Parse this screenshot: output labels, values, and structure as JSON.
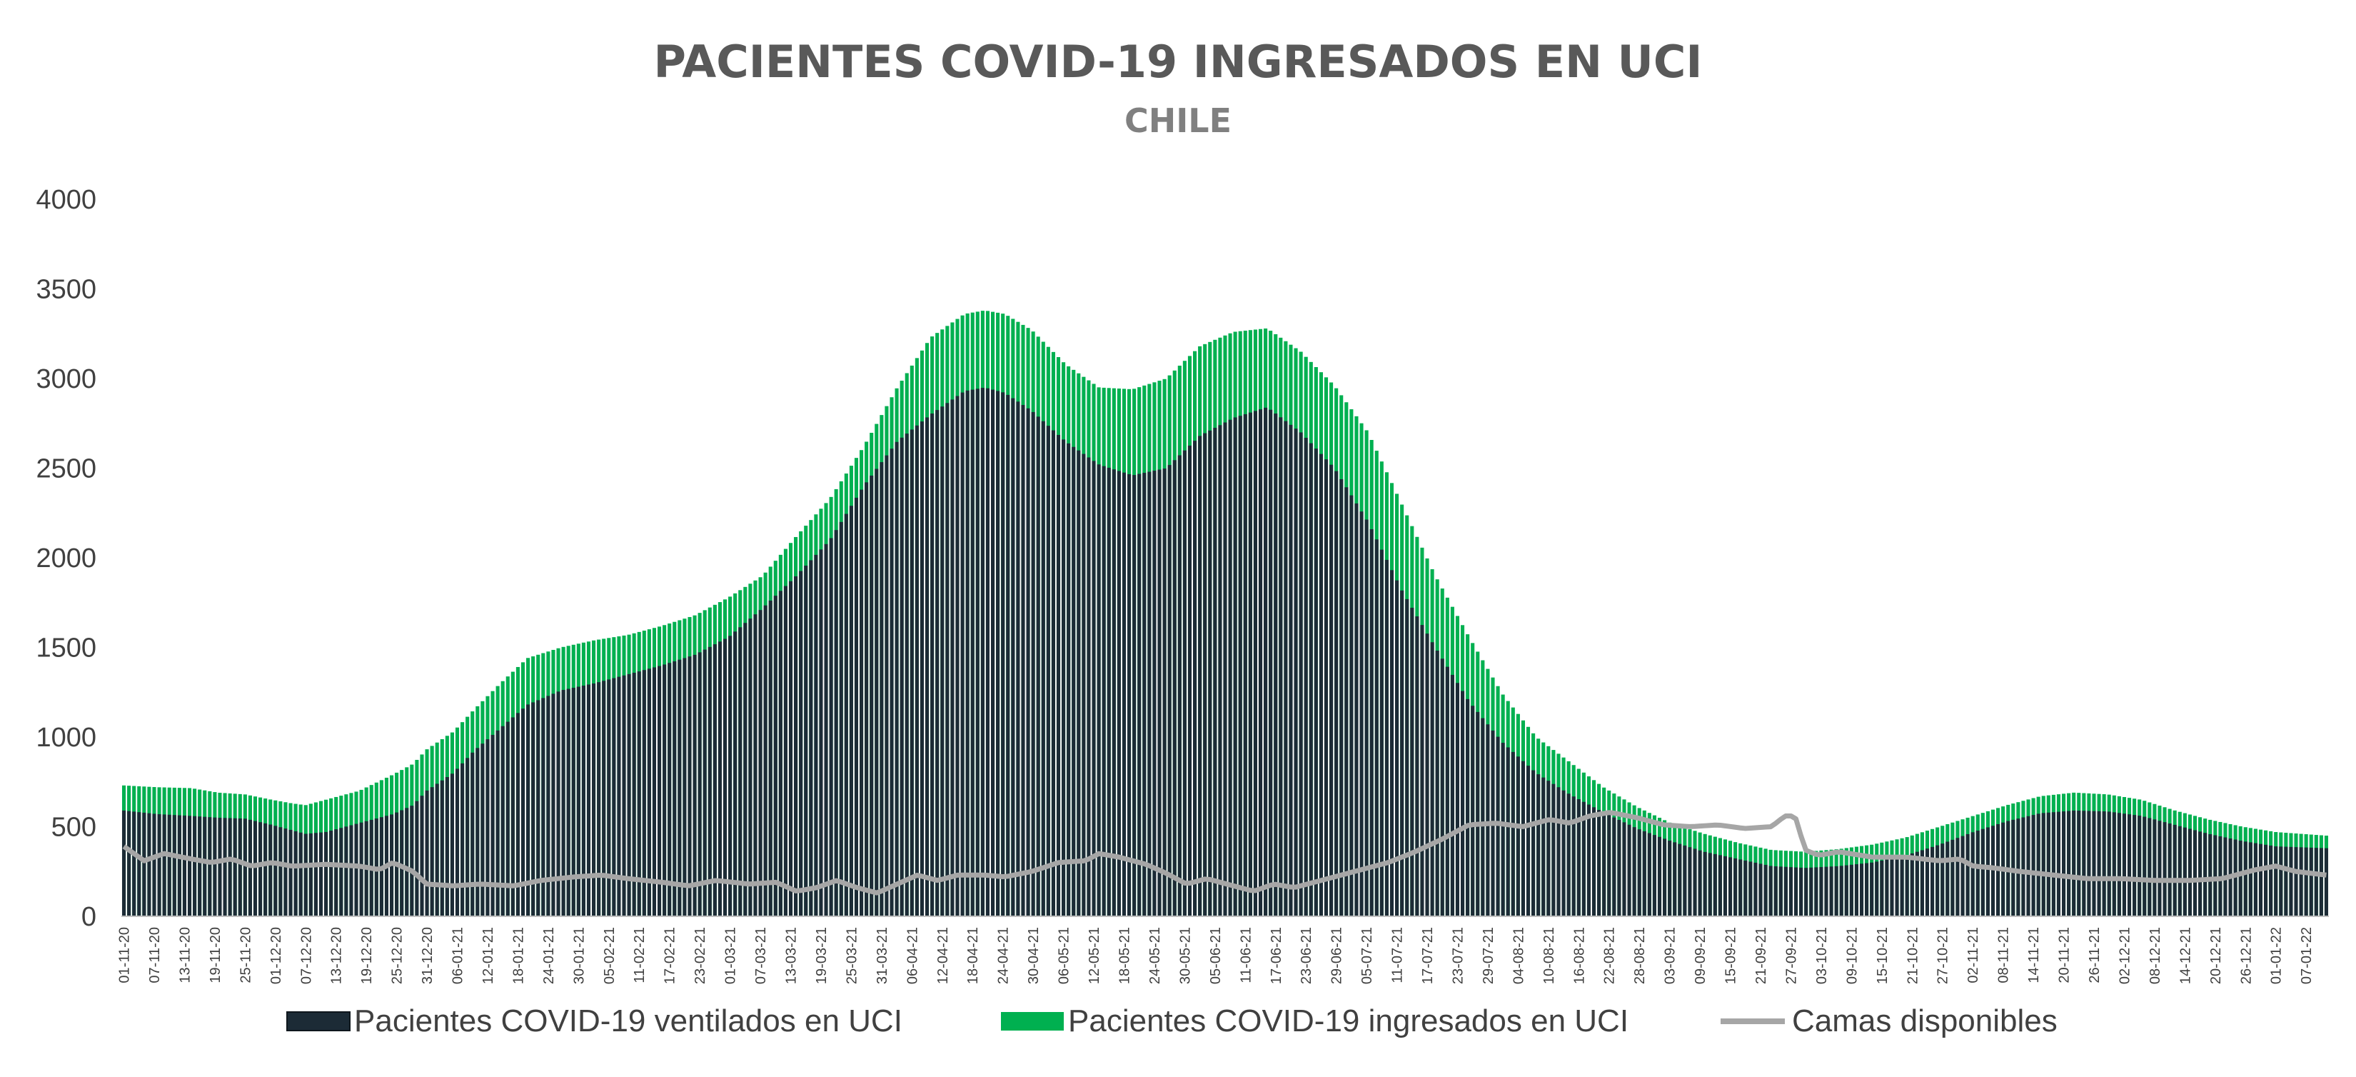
{
  "chart_data": {
    "type": "bar",
    "title": "PACIENTES COVID-19 INGRESADOS EN UCI",
    "subtitle": "CHILE",
    "ylim": [
      0,
      4000
    ],
    "yticks": [
      "0",
      "500",
      "1000",
      "1500",
      "2000",
      "2500",
      "3000",
      "3500",
      "4000"
    ],
    "grid": false,
    "legend_position": "bottom",
    "x_tick_labels": [
      "01-11-20",
      "07-11-20",
      "13-11-20",
      "19-11-20",
      "25-11-20",
      "01-12-20",
      "07-12-20",
      "13-12-20",
      "19-12-20",
      "25-12-20",
      "31-12-20",
      "06-01-21",
      "12-01-21",
      "18-01-21",
      "24-01-21",
      "30-01-21",
      "05-02-21",
      "11-02-21",
      "17-02-21",
      "23-02-21",
      "01-03-21",
      "07-03-21",
      "13-03-21",
      "19-03-21",
      "25-03-21",
      "31-03-21",
      "06-04-21",
      "12-04-21",
      "18-04-21",
      "24-04-21",
      "30-04-21",
      "06-05-21",
      "12-05-21",
      "18-05-21",
      "24-05-21",
      "30-05-21",
      "05-06-21",
      "11-06-21",
      "17-06-21",
      "23-06-21",
      "29-06-21",
      "05-07-21",
      "11-07-21",
      "17-07-21",
      "23-07-21",
      "29-07-21",
      "04-08-21",
      "10-08-21",
      "16-08-21",
      "22-08-21",
      "28-08-21",
      "03-09-21",
      "09-09-21",
      "15-09-21",
      "21-09-21",
      "27-09-21",
      "03-10-21",
      "09-10-21",
      "15-10-21",
      "21-10-21",
      "27-10-21",
      "02-11-21",
      "08-11-21",
      "14-11-21",
      "20-11-21",
      "26-11-21",
      "02-12-21",
      "08-12-21",
      "14-12-21",
      "20-12-21",
      "26-12-21",
      "01-01-22",
      "07-01-22"
    ],
    "days_per_tick": 6,
    "total_days": 437,
    "colors": {
      "ventilados": "#1c2b36",
      "ingresados": "#00b050",
      "camas": "#a6a6a6",
      "title": "#595959",
      "subtitle": "#808080",
      "axis_text": "#404040"
    },
    "legend": [
      {
        "key": "ventilados",
        "label": "Pacientes COVID-19 ventilados en UCI"
      },
      {
        "key": "ingresados",
        "label": "Pacientes COVID-19 ingresados en UCI"
      },
      {
        "key": "camas",
        "label": "Camas disponibles"
      }
    ],
    "series": [
      {
        "name": "Pacientes COVID-19 ingresados en UCI",
        "key": "ingresados",
        "keyframes": [
          [
            0,
            730
          ],
          [
            10,
            720
          ],
          [
            20,
            715
          ],
          [
            28,
            690
          ],
          [
            36,
            680
          ],
          [
            44,
            650
          ],
          [
            50,
            630
          ],
          [
            54,
            620
          ],
          [
            60,
            650
          ],
          [
            70,
            700
          ],
          [
            80,
            790
          ],
          [
            86,
            850
          ],
          [
            90,
            930
          ],
          [
            98,
            1030
          ],
          [
            104,
            1150
          ],
          [
            112,
            1300
          ],
          [
            120,
            1440
          ],
          [
            130,
            1500
          ],
          [
            140,
            1540
          ],
          [
            150,
            1570
          ],
          [
            160,
            1620
          ],
          [
            170,
            1680
          ],
          [
            180,
            1780
          ],
          [
            190,
            1900
          ],
          [
            200,
            2120
          ],
          [
            210,
            2330
          ],
          [
            220,
            2620
          ],
          [
            230,
            2950
          ],
          [
            240,
            3230
          ],
          [
            250,
            3360
          ],
          [
            256,
            3380
          ],
          [
            262,
            3360
          ],
          [
            270,
            3270
          ],
          [
            280,
            3080
          ],
          [
            290,
            2950
          ],
          [
            300,
            2940
          ],
          [
            310,
            3000
          ],
          [
            320,
            3180
          ],
          [
            330,
            3260
          ],
          [
            340,
            3280
          ],
          [
            350,
            3150
          ],
          [
            360,
            2960
          ],
          [
            370,
            2700
          ],
          [
            380,
            2300
          ],
          [
            390,
            1900
          ],
          [
            400,
            1560
          ],
          [
            410,
            1240
          ],
          [
            420,
            1000
          ],
          [
            430,
            860
          ],
          [
            440,
            720
          ],
          [
            450,
            610
          ],
          [
            460,
            520
          ],
          [
            470,
            460
          ],
          [
            480,
            410
          ],
          [
            490,
            370
          ],
          [
            500,
            360
          ],
          [
            510,
            375
          ],
          [
            520,
            400
          ],
          [
            530,
            440
          ],
          [
            540,
            500
          ],
          [
            550,
            560
          ],
          [
            560,
            620
          ],
          [
            570,
            670
          ],
          [
            580,
            690
          ],
          [
            590,
            680
          ],
          [
            600,
            650
          ],
          [
            610,
            590
          ],
          [
            620,
            540
          ],
          [
            630,
            500
          ],
          [
            640,
            470
          ],
          [
            655,
            450
          ]
        ]
      },
      {
        "name": "Pacientes COVID-19 ventilados en UCI",
        "key": "ventilados",
        "keyframes": [
          [
            0,
            590
          ],
          [
            10,
            570
          ],
          [
            20,
            560
          ],
          [
            28,
            550
          ],
          [
            36,
            545
          ],
          [
            44,
            510
          ],
          [
            50,
            480
          ],
          [
            54,
            460
          ],
          [
            60,
            470
          ],
          [
            70,
            520
          ],
          [
            80,
            570
          ],
          [
            86,
            620
          ],
          [
            90,
            700
          ],
          [
            98,
            800
          ],
          [
            104,
            920
          ],
          [
            112,
            1050
          ],
          [
            120,
            1180
          ],
          [
            130,
            1260
          ],
          [
            140,
            1300
          ],
          [
            150,
            1350
          ],
          [
            160,
            1400
          ],
          [
            170,
            1460
          ],
          [
            180,
            1560
          ],
          [
            190,
            1720
          ],
          [
            200,
            1900
          ],
          [
            210,
            2100
          ],
          [
            220,
            2400
          ],
          [
            230,
            2650
          ],
          [
            240,
            2800
          ],
          [
            250,
            2930
          ],
          [
            256,
            2950
          ],
          [
            262,
            2920
          ],
          [
            270,
            2820
          ],
          [
            280,
            2650
          ],
          [
            290,
            2520
          ],
          [
            300,
            2460
          ],
          [
            310,
            2500
          ],
          [
            320,
            2680
          ],
          [
            330,
            2780
          ],
          [
            340,
            2840
          ],
          [
            350,
            2700
          ],
          [
            360,
            2500
          ],
          [
            370,
            2200
          ],
          [
            380,
            1820
          ],
          [
            390,
            1500
          ],
          [
            400,
            1200
          ],
          [
            410,
            970
          ],
          [
            420,
            800
          ],
          [
            430,
            680
          ],
          [
            440,
            580
          ],
          [
            450,
            490
          ],
          [
            460,
            420
          ],
          [
            470,
            360
          ],
          [
            480,
            320
          ],
          [
            490,
            280
          ],
          [
            500,
            270
          ],
          [
            510,
            280
          ],
          [
            520,
            300
          ],
          [
            530,
            340
          ],
          [
            540,
            400
          ],
          [
            550,
            470
          ],
          [
            560,
            530
          ],
          [
            570,
            575
          ],
          [
            580,
            590
          ],
          [
            590,
            585
          ],
          [
            600,
            560
          ],
          [
            610,
            510
          ],
          [
            620,
            460
          ],
          [
            630,
            420
          ],
          [
            640,
            390
          ],
          [
            655,
            380
          ]
        ]
      },
      {
        "name": "Camas disponibles",
        "key": "camas",
        "keyframes": [
          [
            0,
            390
          ],
          [
            6,
            310
          ],
          [
            12,
            350
          ],
          [
            20,
            320
          ],
          [
            26,
            300
          ],
          [
            32,
            320
          ],
          [
            38,
            280
          ],
          [
            44,
            300
          ],
          [
            50,
            280
          ],
          [
            60,
            290
          ],
          [
            70,
            280
          ],
          [
            76,
            260
          ],
          [
            80,
            300
          ],
          [
            86,
            250
          ],
          [
            90,
            180
          ],
          [
            98,
            170
          ],
          [
            106,
            180
          ],
          [
            116,
            170
          ],
          [
            124,
            200
          ],
          [
            134,
            220
          ],
          [
            142,
            230
          ],
          [
            150,
            210
          ],
          [
            160,
            190
          ],
          [
            168,
            170
          ],
          [
            176,
            200
          ],
          [
            186,
            180
          ],
          [
            194,
            190
          ],
          [
            200,
            140
          ],
          [
            206,
            160
          ],
          [
            212,
            200
          ],
          [
            218,
            160
          ],
          [
            224,
            130
          ],
          [
            230,
            180
          ],
          [
            236,
            230
          ],
          [
            242,
            200
          ],
          [
            248,
            230
          ],
          [
            256,
            230
          ],
          [
            262,
            220
          ],
          [
            270,
            250
          ],
          [
            278,
            300
          ],
          [
            286,
            310
          ],
          [
            290,
            350
          ],
          [
            296,
            330
          ],
          [
            304,
            290
          ],
          [
            310,
            240
          ],
          [
            316,
            180
          ],
          [
            322,
            210
          ],
          [
            330,
            170
          ],
          [
            336,
            140
          ],
          [
            342,
            180
          ],
          [
            348,
            160
          ],
          [
            356,
            200
          ],
          [
            362,
            230
          ],
          [
            368,
            260
          ],
          [
            376,
            300
          ],
          [
            384,
            360
          ],
          [
            392,
            430
          ],
          [
            400,
            510
          ],
          [
            408,
            520
          ],
          [
            416,
            500
          ],
          [
            424,
            540
          ],
          [
            430,
            520
          ],
          [
            436,
            560
          ],
          [
            442,
            580
          ],
          [
            450,
            550
          ],
          [
            458,
            510
          ],
          [
            466,
            500
          ],
          [
            474,
            510
          ],
          [
            482,
            490
          ],
          [
            490,
            500
          ],
          [
            494,
            560
          ],
          [
            497,
            560
          ],
          [
            500,
            370
          ],
          [
            504,
            340
          ],
          [
            510,
            360
          ],
          [
            520,
            330
          ],
          [
            530,
            330
          ],
          [
            540,
            310
          ],
          [
            546,
            320
          ],
          [
            550,
            280
          ],
          [
            556,
            270
          ],
          [
            564,
            250
          ],
          [
            574,
            230
          ],
          [
            584,
            210
          ],
          [
            594,
            210
          ],
          [
            604,
            200
          ],
          [
            614,
            200
          ],
          [
            624,
            210
          ],
          [
            634,
            260
          ],
          [
            640,
            280
          ],
          [
            646,
            250
          ],
          [
            655,
            230
          ]
        ]
      }
    ]
  }
}
